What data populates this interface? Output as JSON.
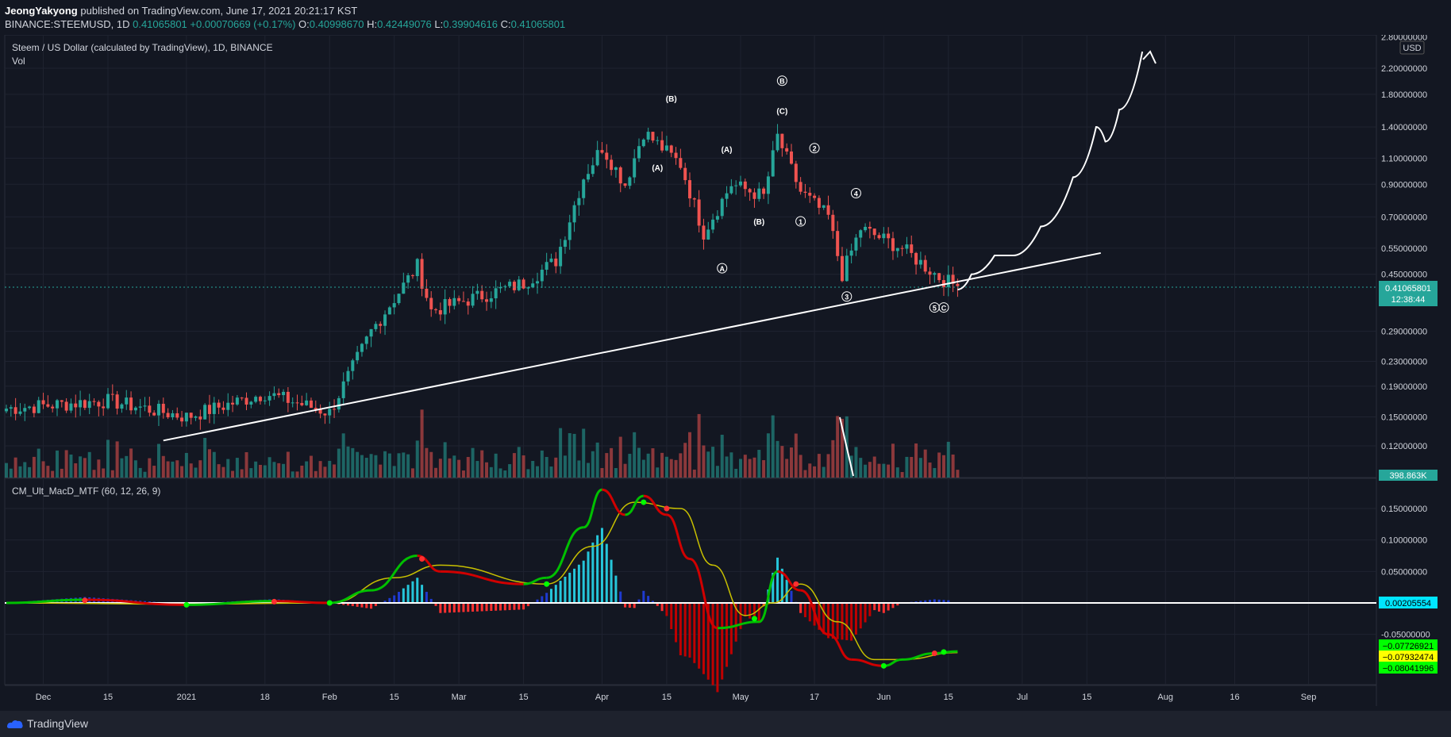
{
  "header": {
    "author": "JeongYakyong",
    "published_text": "published on TradingView.com, June 17, 2021 20:21:17 KST",
    "symbol": "BINANCE:STEEMUSD, 1D",
    "last": "0.41065801",
    "change": "+0.00070669 (+0.17%)",
    "open_label": "O:",
    "open": "0.40998670",
    "high_label": "H:",
    "high": "0.42449076",
    "low_label": "L:",
    "low": "0.39904616",
    "close_label": "C:",
    "close": "0.41065801"
  },
  "main_pane": {
    "title": "Steem / US Dollar (calculated by TradingView), 1D, BINANCE",
    "volume_label": "Vol",
    "currency": "USD",
    "price_badge": "0.41065801",
    "countdown": "12:38:44",
    "volume_badge": "398.863K",
    "price_ticks": [
      "2.80000000",
      "2.20000000",
      "1.80000000",
      "1.40000000",
      "1.10000000",
      "0.90000000",
      "0.70000000",
      "0.55000000",
      "0.45000000",
      "0.29000000",
      "0.23000000",
      "0.19000000",
      "0.15000000",
      "0.12000000"
    ],
    "wave_labels": [
      {
        "text": "(B)",
        "key": "b1"
      },
      {
        "text": "(A)",
        "key": "a1"
      },
      {
        "text": "(A)",
        "key": "a2"
      },
      {
        "text": "(B)",
        "key": "b2"
      },
      {
        "text": "(C)",
        "key": "c1"
      },
      {
        "text": "B",
        "key": "bc"
      },
      {
        "text": "A",
        "key": "ac"
      },
      {
        "text": "1",
        "key": "w1"
      },
      {
        "text": "2",
        "key": "w2"
      },
      {
        "text": "3",
        "key": "w3"
      },
      {
        "text": "4",
        "key": "w4"
      },
      {
        "text": "5",
        "key": "w5"
      },
      {
        "text": "C",
        "key": "cc"
      }
    ]
  },
  "macd_pane": {
    "title": "CM_Ult_MacD_MTF (60, 12, 26, 9)",
    "ticks": [
      "0.15000000",
      "0.10000000",
      "0.05000000",
      "-0.05000000"
    ],
    "badges": [
      {
        "text": "0.00205554",
        "color": "#00e5ff"
      },
      {
        "text": "−0.07726921",
        "color": "#00ff00"
      },
      {
        "text": "−0.07932474",
        "color": "#ffff00"
      },
      {
        "text": "−0.08041996",
        "color": "#00ff00"
      }
    ]
  },
  "time_axis": [
    "Dec",
    "15",
    "2021",
    "18",
    "Feb",
    "15",
    "Mar",
    "15",
    "Apr",
    "15",
    "May",
    "17",
    "Jun",
    "15",
    "Jul",
    "15",
    "Aug",
    "16",
    "Sep"
  ],
  "footer": {
    "brand": "TradingView"
  },
  "colors": {
    "up": "#26a69a",
    "down": "#ef5350",
    "background": "#131722",
    "grid": "#1f2330",
    "macd_up": "#00c000",
    "macd_down": "#d00000",
    "signal": "#c8c000"
  },
  "chart_data": {
    "type": "candlestick",
    "title": "Steem / US Dollar (calculated by TradingView), 1D, BINANCE",
    "scale": "log",
    "ylim": [
      0.1,
      2.8
    ],
    "x_range": [
      "2020-11-23",
      "2021-09-15"
    ],
    "last_price": 0.41065801,
    "key_points": [
      {
        "date": "2020-11-23",
        "close": 0.16
      },
      {
        "date": "2020-12-15",
        "close": 0.17
      },
      {
        "date": "2021-01-01",
        "close": 0.15
      },
      {
        "date": "2021-01-18",
        "close": 0.18
      },
      {
        "date": "2021-02-01",
        "close": 0.155
      },
      {
        "date": "2021-02-10",
        "close": 0.29
      },
      {
        "date": "2021-02-20",
        "close": 0.48
      },
      {
        "date": "2021-02-23",
        "close": 0.34
      },
      {
        "date": "2021-03-15",
        "close": 0.42
      },
      {
        "date": "2021-03-22",
        "close": 0.5
      },
      {
        "date": "2021-03-28",
        "close": 0.95
      },
      {
        "date": "2021-04-01",
        "close": 1.2
      },
      {
        "date": "2021-04-06",
        "close": 0.9
      },
      {
        "date": "2021-04-10",
        "close": 1.35
      },
      {
        "date": "2021-04-18",
        "close": 1.05
      },
      {
        "date": "2021-04-23",
        "close": 0.62
      },
      {
        "date": "2021-04-29",
        "close": 0.9
      },
      {
        "date": "2021-05-06",
        "close": 0.82
      },
      {
        "date": "2021-05-09",
        "close": 1.3
      },
      {
        "date": "2021-05-14",
        "close": 0.85
      },
      {
        "date": "2021-05-20",
        "close": 0.7
      },
      {
        "date": "2021-05-23",
        "close": 0.45
      },
      {
        "date": "2021-05-27",
        "close": 0.64
      },
      {
        "date": "2021-06-05",
        "close": 0.55
      },
      {
        "date": "2021-06-13",
        "close": 0.44
      },
      {
        "date": "2021-06-17",
        "close": 0.41
      }
    ],
    "trendline": [
      {
        "date": "2020-12-27",
        "price": 0.125
      },
      {
        "date": "2021-07-18",
        "price": 0.53
      }
    ],
    "projection": [
      {
        "date": "2021-06-17",
        "price": 0.4
      },
      {
        "date": "2021-06-20",
        "price": 0.45
      },
      {
        "date": "2021-06-25",
        "price": 0.52
      },
      {
        "date": "2021-06-29",
        "price": 0.52
      },
      {
        "date": "2021-07-05",
        "price": 0.65
      },
      {
        "date": "2021-07-12",
        "price": 0.95
      },
      {
        "date": "2021-07-17",
        "price": 1.4
      },
      {
        "date": "2021-07-19",
        "price": 1.25
      },
      {
        "date": "2021-07-22",
        "price": 1.6
      },
      {
        "date": "2021-07-27",
        "price": 2.5
      }
    ],
    "macd": {
      "zero_line": 0.00205554,
      "macd_last": -0.07726921,
      "signal_last": -0.07932474,
      "hist_last": -0.08041996,
      "ylim": [
        -0.1,
        0.18
      ]
    }
  }
}
